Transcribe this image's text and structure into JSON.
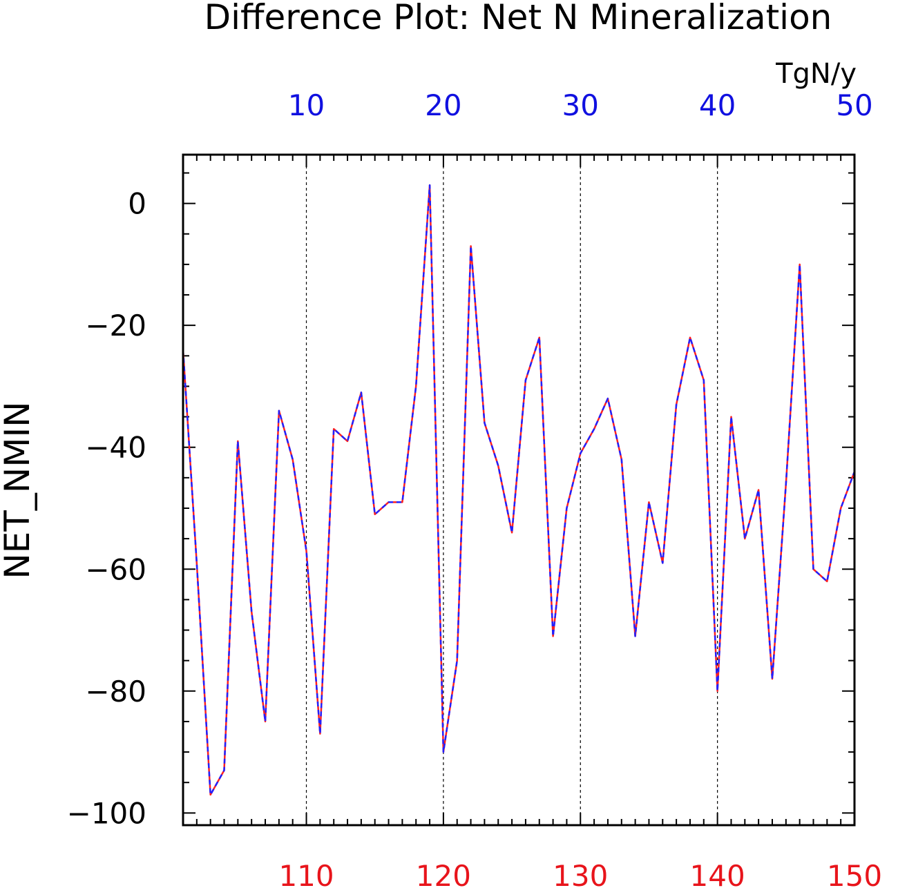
{
  "chart_data": {
    "type": "line",
    "title": "Difference Plot: Net N Mineralization",
    "ylabel": "NET_NMIN",
    "units": "TgN/y",
    "xlim_bottom": [
      101,
      150
    ],
    "xlim_top": [
      1,
      50
    ],
    "ylim": [
      -102,
      8
    ],
    "bottom_ticks": [
      "110",
      "120",
      "130",
      "140",
      "150"
    ],
    "bottom_tick_values": [
      110,
      120,
      130,
      140,
      150
    ],
    "top_ticks": [
      "10",
      "20",
      "30",
      "40",
      "50"
    ],
    "top_tick_values": [
      10,
      20,
      30,
      40,
      50
    ],
    "y_ticks": [
      "0",
      "−20",
      "−40",
      "−60",
      "−80",
      "−100"
    ],
    "y_tick_values": [
      0,
      -20,
      -40,
      -60,
      -80,
      -100
    ],
    "grid": "dashed-vertical",
    "colors": {
      "bottom_axis": "#e8141b",
      "top_axis": "#1010e0",
      "series_a": "#ff2020",
      "series_b": "#2020ff",
      "frame": "#000000"
    },
    "series": [
      {
        "x": [
          101,
          102,
          103,
          104,
          105,
          106,
          107,
          108,
          109,
          110,
          111,
          112,
          113,
          114,
          115,
          116,
          117,
          118,
          119,
          120,
          121,
          122,
          123,
          124,
          125,
          126,
          127,
          128,
          129,
          130,
          131,
          132,
          133,
          134,
          135,
          136,
          137,
          138,
          139,
          140,
          141,
          142,
          143,
          144,
          145,
          146,
          147,
          148,
          149,
          150
        ],
        "values": [
          -24,
          -59,
          -97,
          -93,
          -39,
          -67,
          -85,
          -34,
          -42,
          -57,
          -87,
          -37,
          -39,
          -31,
          -51,
          -49,
          -49,
          -30,
          3,
          -90,
          -75,
          -7,
          -36,
          -43,
          -54,
          -29,
          -22,
          -71,
          -50,
          -41,
          -37,
          -32,
          -42,
          -71,
          -49,
          -59,
          -33,
          -22,
          -29,
          -80,
          -35,
          -55,
          -47,
          -78,
          -46,
          -10,
          -60,
          -62,
          -50,
          -44
        ]
      }
    ]
  }
}
